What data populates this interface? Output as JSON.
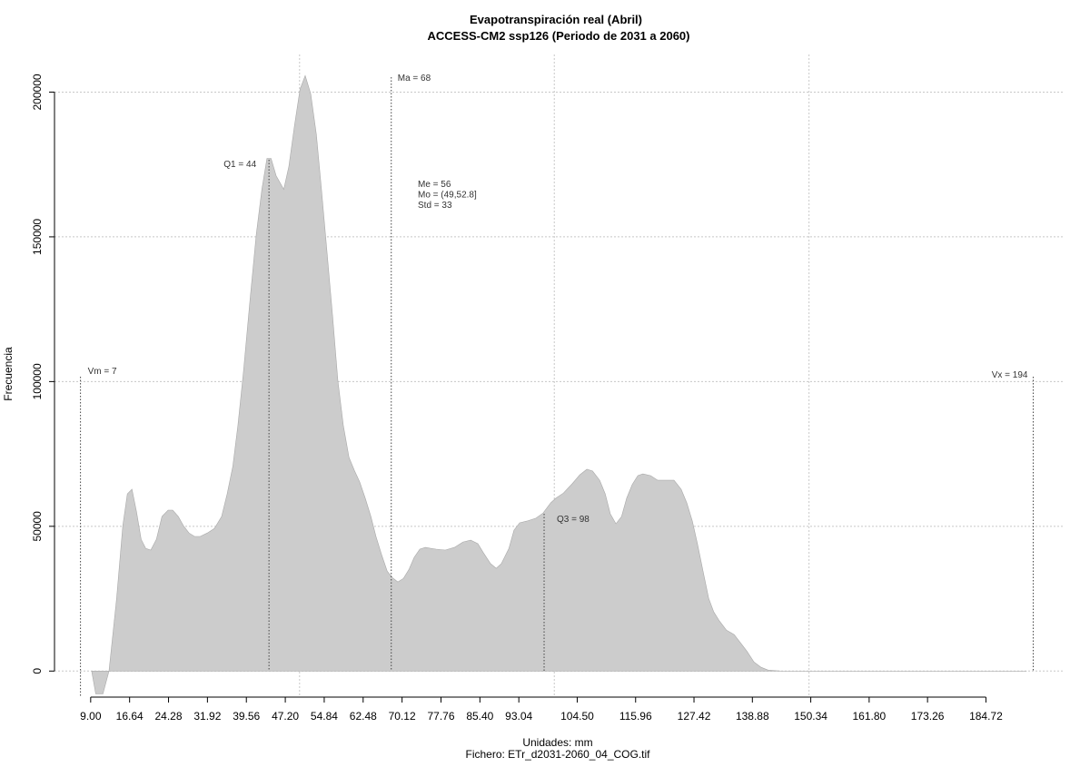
{
  "chart_data": {
    "type": "area",
    "title": "Evapotranspiración real (Abril)",
    "subtitle": "ACCESS-CM2 ssp126 (Periodo de 2031 a 2060)",
    "x_label": "Unidades: mm",
    "file_label": "Fichero: ETr_d2031-2060_04_COG.tif",
    "y_label": "Frecuencia",
    "color": "#cccccc",
    "xlim": [
      1.9,
      199.8
    ],
    "ylim": [
      -9000,
      213000
    ],
    "xticks": [
      {
        "value": 9,
        "label": "9.00"
      },
      16.64,
      24.28,
      31.92,
      39.56,
      {
        "value": 47.2,
        "label": "47.20"
      },
      54.84,
      62.48,
      70.12,
      77.76,
      {
        "value": 85.4,
        "label": "85.40"
      },
      93.04,
      {
        "value": 104.5,
        "label": "104.50"
      },
      115.96,
      127.42,
      138.88,
      150.34,
      {
        "value": 161.8,
        "label": "161.80"
      },
      173.26,
      184.72
    ],
    "yticks": [
      0,
      50000,
      100000,
      150000,
      200000
    ],
    "xgrid": [
      50,
      100,
      150
    ],
    "grid": true,
    "x": [
      9.2,
      10.0,
      11.4,
      12.6,
      14.1,
      15.3,
      16.2,
      17.1,
      18.0,
      18.9,
      19.8,
      20.8,
      21.9,
      23.0,
      24.2,
      25.1,
      26.2,
      27.2,
      28.3,
      29.4,
      30.5,
      31.9,
      33.3,
      34.7,
      35.8,
      36.9,
      37.9,
      39.0,
      40.3,
      41.5,
      42.6,
      43.6,
      44.4,
      45.4,
      46.9,
      47.9,
      49.0,
      50.1,
      51.1,
      52.2,
      53.3,
      54.3,
      55.4,
      56.5,
      57.5,
      58.6,
      59.7,
      60.8,
      61.8,
      62.9,
      64.0,
      65.0,
      66.1,
      67.2,
      68.2,
      69.3,
      70.4,
      71.5,
      72.5,
      73.6,
      74.7,
      75.7,
      76.8,
      78.6,
      80.4,
      82.1,
      83.6,
      85.0,
      86.1,
      87.5,
      88.6,
      89.6,
      91.1,
      92.1,
      93.2,
      94.6,
      96.4,
      97.8,
      99.3,
      100.3,
      101.8,
      103.5,
      105.0,
      106.4,
      107.5,
      108.9,
      110.0,
      111.0,
      112.1,
      113.2,
      114.2,
      115.3,
      116.4,
      117.4,
      118.9,
      120.3,
      122.1,
      123.5,
      124.9,
      126.0,
      127.1,
      128.1,
      129.2,
      130.3,
      131.3,
      132.4,
      133.8,
      135.3,
      136.7,
      137.8,
      139.2,
      140.6,
      142.0,
      144.5,
      148.1,
      192.7
    ],
    "values": [
      0,
      -7900,
      -7900,
      0,
      25100,
      50200,
      61200,
      62800,
      55000,
      45500,
      42400,
      41800,
      45500,
      53400,
      55600,
      55600,
      53400,
      50200,
      47700,
      46500,
      46500,
      47700,
      49300,
      53400,
      61200,
      70700,
      84800,
      103600,
      128700,
      150700,
      166400,
      177100,
      177100,
      171100,
      166400,
      174300,
      188400,
      201000,
      205700,
      199400,
      185300,
      166400,
      144400,
      122500,
      100500,
      84800,
      73800,
      69100,
      65300,
      59700,
      53400,
      46500,
      40200,
      34500,
      32300,
      30800,
      32000,
      35200,
      39300,
      42100,
      42700,
      42400,
      42100,
      41800,
      42700,
      44600,
      45200,
      44000,
      40800,
      37100,
      35500,
      37100,
      42400,
      48700,
      51200,
      51800,
      52800,
      54600,
      58100,
      59700,
      61500,
      64700,
      67800,
      69700,
      69100,
      65900,
      61200,
      54300,
      50900,
      53400,
      59700,
      64400,
      67500,
      68100,
      67500,
      65900,
      65900,
      65900,
      62800,
      58100,
      51800,
      44000,
      34500,
      25100,
      20400,
      17300,
      14100,
      12600,
      9400,
      6900,
      3100,
      1300,
      300,
      0,
      0,
      0
    ],
    "markers": [
      {
        "label": "Vm = 7",
        "value": 7
      },
      {
        "label": "Q1 = 44",
        "value": 44
      },
      {
        "label": "Ma = 68",
        "value": 68
      },
      {
        "label": "Q3 = 98",
        "value": 98
      },
      {
        "label": "Vx = 194",
        "value": 194
      }
    ],
    "stats": [
      "Me = 56",
      "Mo = (49,52.8]",
      "Std = 33"
    ]
  }
}
